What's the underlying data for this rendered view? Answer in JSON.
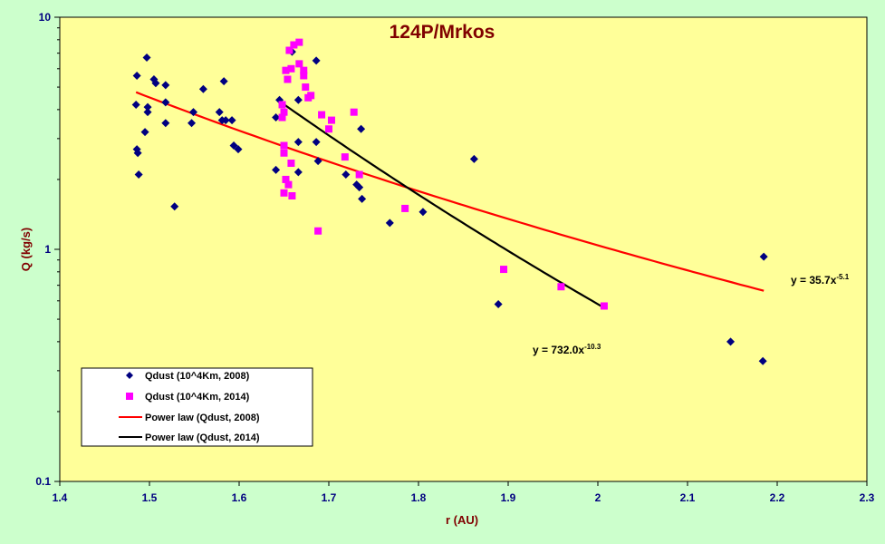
{
  "chart_data": {
    "type": "scatter",
    "title": "124P/Mrkos",
    "xlabel": "r (AU)",
    "ylabel": "Q (kg/s)",
    "xlim": [
      1.4,
      2.3
    ],
    "ylim": [
      0.1,
      10
    ],
    "yscale": "log",
    "grid": false,
    "plot_background": "#ffff99",
    "figure_background": "#ccffcc",
    "x_ticks": [
      "1.4",
      "1.5",
      "1.6",
      "1.7",
      "1.8",
      "1.9",
      "2",
      "2.1",
      "2.2",
      "2.3"
    ],
    "y_ticks": [
      "0.1",
      "1",
      "10"
    ],
    "legend_position": "bottom-left",
    "series": [
      {
        "name": "Qdust (10^4Km, 2008)",
        "kind": "scatter",
        "marker": "diamond",
        "color": "#000080",
        "points": [
          [
            1.486,
            5.6
          ],
          [
            1.485,
            4.2
          ],
          [
            1.487,
            2.6
          ],
          [
            1.486,
            2.7
          ],
          [
            1.488,
            2.1
          ],
          [
            1.497,
            6.7
          ],
          [
            1.498,
            4.1
          ],
          [
            1.498,
            3.9
          ],
          [
            1.495,
            3.2
          ],
          [
            1.505,
            5.4
          ],
          [
            1.507,
            5.2
          ],
          [
            1.518,
            5.1
          ],
          [
            1.518,
            4.3
          ],
          [
            1.518,
            3.5
          ],
          [
            1.528,
            1.53
          ],
          [
            1.547,
            3.5
          ],
          [
            1.549,
            3.9
          ],
          [
            1.56,
            4.9
          ],
          [
            1.578,
            3.9
          ],
          [
            1.581,
            3.6
          ],
          [
            1.583,
            5.3
          ],
          [
            1.585,
            3.6
          ],
          [
            1.592,
            3.6
          ],
          [
            1.594,
            2.8
          ],
          [
            1.599,
            2.7
          ],
          [
            1.641,
            3.7
          ],
          [
            1.641,
            2.2
          ],
          [
            1.645,
            4.4
          ],
          [
            1.659,
            7.1
          ],
          [
            1.666,
            4.4
          ],
          [
            1.666,
            2.9
          ],
          [
            1.666,
            2.15
          ],
          [
            1.686,
            6.5
          ],
          [
            1.686,
            2.9
          ],
          [
            1.688,
            2.4
          ],
          [
            1.719,
            2.1
          ],
          [
            1.731,
            1.9
          ],
          [
            1.734,
            1.85
          ],
          [
            1.736,
            3.3
          ],
          [
            1.737,
            1.65
          ],
          [
            1.768,
            1.3
          ],
          [
            1.805,
            1.45
          ],
          [
            1.862,
            2.45
          ],
          [
            1.889,
            0.58
          ],
          [
            2.148,
            0.4
          ],
          [
            2.185,
            0.93
          ],
          [
            2.184,
            0.33
          ]
        ]
      },
      {
        "name": "Qdust (10^4Km, 2014)",
        "kind": "scatter",
        "marker": "square",
        "color": "#ff00ff",
        "points": [
          [
            1.648,
            4.2
          ],
          [
            1.65,
            3.9
          ],
          [
            1.648,
            3.7
          ],
          [
            1.65,
            2.8
          ],
          [
            1.65,
            2.6
          ],
          [
            1.652,
            5.9
          ],
          [
            1.654,
            5.4
          ],
          [
            1.652,
            2.0
          ],
          [
            1.65,
            1.75
          ],
          [
            1.655,
            1.9
          ],
          [
            1.656,
            7.2
          ],
          [
            1.658,
            6.0
          ],
          [
            1.661,
            7.6
          ],
          [
            1.658,
            2.35
          ],
          [
            1.659,
            1.7
          ],
          [
            1.667,
            7.8
          ],
          [
            1.667,
            6.3
          ],
          [
            1.672,
            5.6
          ],
          [
            1.674,
            5.0
          ],
          [
            1.672,
            5.9
          ],
          [
            1.677,
            4.5
          ],
          [
            1.68,
            4.6
          ],
          [
            1.688,
            1.2
          ],
          [
            1.692,
            3.8
          ],
          [
            1.7,
            3.3
          ],
          [
            1.703,
            3.6
          ],
          [
            1.718,
            2.5
          ],
          [
            1.728,
            3.9
          ],
          [
            1.734,
            2.1
          ],
          [
            1.785,
            1.5
          ],
          [
            1.895,
            0.82
          ],
          [
            1.959,
            0.69
          ],
          [
            2.007,
            0.57
          ]
        ]
      },
      {
        "name": "Power law (Qdust, 2008)",
        "kind": "line",
        "color": "#ff0000",
        "x_range": [
          1.485,
          2.185
        ],
        "coefficient": 35.7,
        "exponent": -5.1
      },
      {
        "name": "Power law (Qdust, 2014)",
        "kind": "line",
        "color": "#000000",
        "x_range": [
          1.648,
          2.007
        ],
        "coefficient": 732.0,
        "exponent": -10.3
      }
    ],
    "annotations": [
      {
        "text_base": "y = 35.7x",
        "text_sup": "-5.1",
        "at": [
          2.2,
          0.72
        ]
      },
      {
        "text_base": "y = 732.0x",
        "text_sup": "-10.3",
        "at": [
          1.93,
          0.39
        ]
      }
    ]
  }
}
